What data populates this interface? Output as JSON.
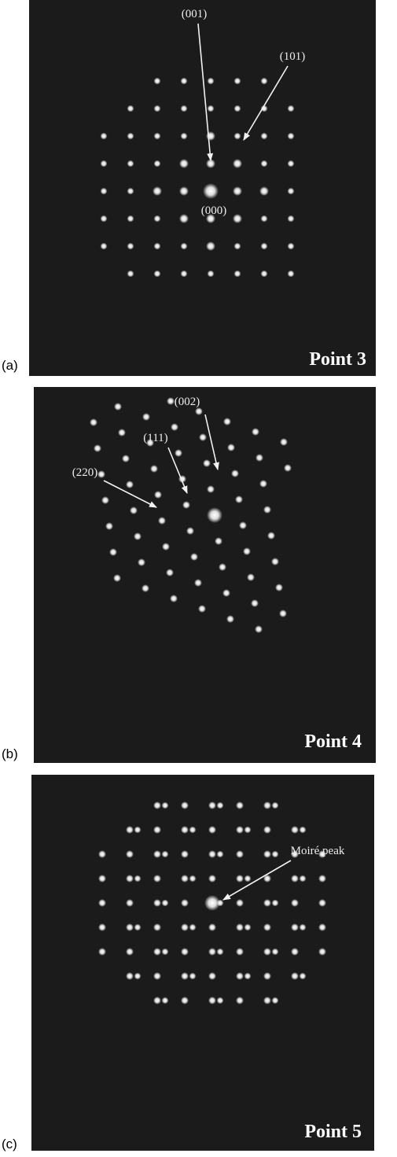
{
  "panels": [
    {
      "label": "(a)",
      "title": "Point 3",
      "annotations": [
        "(001)",
        "(101)",
        "(000)"
      ]
    },
    {
      "label": "(b)",
      "title": "Point 4",
      "annotations": [
        "(002)",
        "(111)",
        "(220)"
      ]
    },
    {
      "label": "(c)",
      "title": "Point 5",
      "annotations": [
        "Moiré peak"
      ]
    }
  ]
}
